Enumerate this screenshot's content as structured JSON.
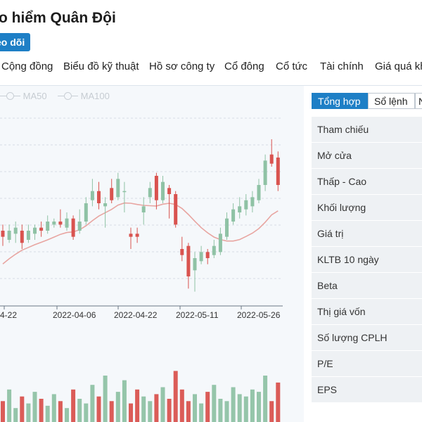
{
  "header": {
    "title": "o hiểm Quân Đội",
    "follow_label": "eo dõi"
  },
  "tabs": [
    {
      "label": "Cộng đồng"
    },
    {
      "label": "Biểu đồ kỹ thuật"
    },
    {
      "label": "Hồ sơ công ty"
    },
    {
      "label": "Cổ đông"
    },
    {
      "label": "Cổ tức"
    },
    {
      "label": "Tài chính"
    },
    {
      "label": "Giá quá kh"
    }
  ],
  "legend": [
    {
      "label": "MA50"
    },
    {
      "label": "MA100"
    }
  ],
  "right_panel": {
    "tabs": [
      {
        "label": "Tổng hợp",
        "active": true
      },
      {
        "label": "Sổ lệnh",
        "active": false
      },
      {
        "label": "N",
        "active": false
      }
    ],
    "rows": [
      {
        "label": "Tham chiếu"
      },
      {
        "label": "Mở cửa"
      },
      {
        "label": "Thấp - Cao"
      },
      {
        "label": "Khối lượng"
      },
      {
        "label": "Giá trị"
      },
      {
        "label": "KLTB 10 ngày"
      },
      {
        "label": "Beta"
      },
      {
        "label": "Thị giá vốn"
      },
      {
        "label": "Số lượng CPLH"
      },
      {
        "label": "P/E"
      },
      {
        "label": "EPS"
      }
    ]
  },
  "colors": {
    "up": "#8fc2a5",
    "down": "#d9534f",
    "ma": "#e8a5a1",
    "accent": "#1e7fc6"
  },
  "chart_data": {
    "type": "candlestick",
    "x_tick_labels": [
      "4-22",
      "2022-04-06",
      "2022-04-22",
      "2022-05-11",
      "2022-05-26"
    ],
    "candles": [
      {
        "o": 59,
        "c": 57,
        "h": 61,
        "l": 54
      },
      {
        "o": 56,
        "c": 59,
        "h": 61,
        "l": 55
      },
      {
        "o": 58,
        "c": 60,
        "h": 62,
        "l": 55
      },
      {
        "o": 59,
        "c": 55,
        "h": 61,
        "l": 53
      },
      {
        "o": 56,
        "c": 59,
        "h": 61,
        "l": 55
      },
      {
        "o": 58,
        "c": 60,
        "h": 61,
        "l": 56
      },
      {
        "o": 60,
        "c": 59,
        "h": 62,
        "l": 57
      },
      {
        "o": 59,
        "c": 62,
        "h": 64,
        "l": 58
      },
      {
        "o": 61,
        "c": 62,
        "h": 63,
        "l": 60
      },
      {
        "o": 62,
        "c": 61,
        "h": 66,
        "l": 60
      },
      {
        "o": 60,
        "c": 63,
        "h": 65,
        "l": 59
      },
      {
        "o": 63,
        "c": 57,
        "h": 64,
        "l": 56
      },
      {
        "o": 59,
        "c": 62,
        "h": 66,
        "l": 58
      },
      {
        "o": 62,
        "c": 68,
        "h": 70,
        "l": 61
      },
      {
        "o": 69,
        "c": 72,
        "h": 76,
        "l": 67
      },
      {
        "o": 72,
        "c": 68,
        "h": 75,
        "l": 66
      },
      {
        "o": 67,
        "c": 68,
        "h": 70,
        "l": 60
      },
      {
        "o": 73,
        "c": 69,
        "h": 76,
        "l": 68
      },
      {
        "o": 70,
        "c": 76,
        "h": 78,
        "l": 69
      },
      {
        "o": 72,
        "c": 72,
        "h": 75,
        "l": 65
      },
      {
        "o": 58,
        "c": 57,
        "h": 60,
        "l": 53
      },
      {
        "o": 58,
        "c": 57,
        "h": 60,
        "l": 55
      },
      {
        "o": 65,
        "c": 67,
        "h": 70,
        "l": 61
      },
      {
        "o": 70,
        "c": 73,
        "h": 75,
        "l": 68
      },
      {
        "o": 77,
        "c": 69,
        "h": 78,
        "l": 66
      },
      {
        "o": 69,
        "c": 75,
        "h": 77,
        "l": 68
      },
      {
        "o": 73,
        "c": 71,
        "h": 74,
        "l": 63
      },
      {
        "o": 71,
        "c": 61,
        "h": 72,
        "l": 60
      },
      {
        "o": 53,
        "c": 51,
        "h": 57,
        "l": 49
      },
      {
        "o": 54,
        "c": 44,
        "h": 55,
        "l": 40
      },
      {
        "o": 46,
        "c": 50,
        "h": 52,
        "l": 39
      },
      {
        "o": 49,
        "c": 52,
        "h": 54,
        "l": 48
      },
      {
        "o": 52,
        "c": 50,
        "h": 53,
        "l": 48
      },
      {
        "o": 51,
        "c": 54,
        "h": 56,
        "l": 50
      },
      {
        "o": 52,
        "c": 58,
        "h": 60,
        "l": 51
      },
      {
        "o": 57,
        "c": 63,
        "h": 65,
        "l": 56
      },
      {
        "o": 62,
        "c": 66,
        "h": 68,
        "l": 61
      },
      {
        "o": 65,
        "c": 67,
        "h": 70,
        "l": 63
      },
      {
        "o": 66,
        "c": 69,
        "h": 71,
        "l": 64
      },
      {
        "o": 67,
        "c": 70,
        "h": 72,
        "l": 65
      },
      {
        "o": 69,
        "c": 74,
        "h": 76,
        "l": 68
      },
      {
        "o": 74,
        "c": 82,
        "h": 84,
        "l": 72
      },
      {
        "o": 84,
        "c": 81,
        "h": 89,
        "l": 80
      },
      {
        "o": 83,
        "c": 74,
        "h": 85,
        "l": 72
      }
    ],
    "ma": [
      48.1,
      49.8,
      51.3,
      52.6,
      53.5,
      54.4,
      55.2,
      56.0,
      56.9,
      57.8,
      58.4,
      58.6,
      59.3,
      60.6,
      62.3,
      63.8,
      64.9,
      66.0,
      67.4,
      68.1,
      68.0,
      67.6,
      67.3,
      67.2,
      67.1,
      67.7,
      68.0,
      67.6,
      66.3,
      64.3,
      62.1,
      60.0,
      58.3,
      56.9,
      56.1,
      55.6,
      55.6,
      56.1,
      57.1,
      58.2,
      59.7,
      61.8,
      64.2,
      65.5
    ],
    "volumes": [
      9,
      14,
      6,
      11,
      8,
      13,
      10,
      7,
      12,
      9,
      6,
      14,
      10,
      8,
      16,
      11,
      20,
      9,
      13,
      18,
      8,
      14,
      11,
      9,
      12,
      15,
      10,
      22,
      14,
      9,
      12,
      8,
      13,
      16,
      10,
      9,
      15,
      12,
      11,
      14,
      13,
      20,
      9,
      17
    ],
    "ylim": [
      35,
      95
    ]
  }
}
